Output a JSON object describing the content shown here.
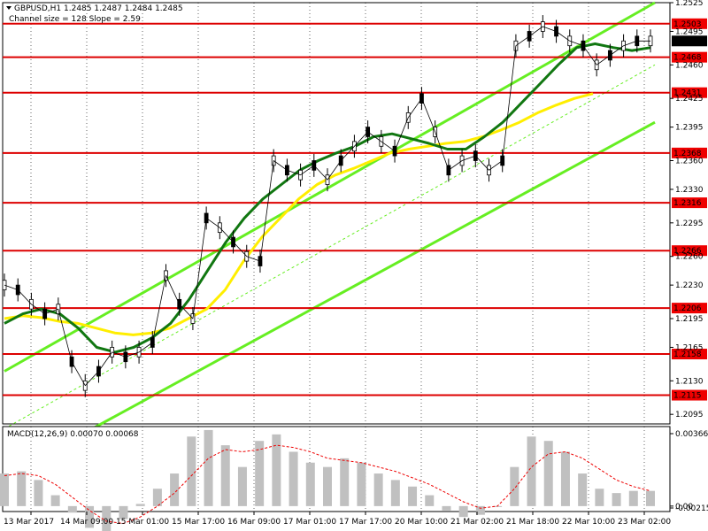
{
  "chart_data": {
    "type": "line",
    "symbol": "GBPUSD",
    "timeframe": "H1",
    "ohlc": [
      1.2485,
      1.2487,
      1.2484,
      1.2485
    ],
    "indicator_label": "Channel size = 128 Slope = 2.59",
    "ylim": [
      1.2085,
      1.2525
    ],
    "y_ticks": [
      "1.2525",
      "1.2495",
      "1.2460",
      "1.2425",
      "1.2395",
      "1.2360",
      "1.2330",
      "1.2295",
      "1.2260",
      "1.2230",
      "1.2195",
      "1.2165",
      "1.2130",
      "1.2095"
    ],
    "levels": [
      1.2503,
      1.2468,
      1.2431,
      1.2368,
      1.2316,
      1.2266,
      1.2206,
      1.2158,
      1.2115
    ],
    "level_labels": [
      "1.2503",
      "1.2468",
      "1.2431",
      "1.2368",
      "1.2316",
      "1.2266",
      "1.2206",
      "1.2158",
      "1.2115"
    ],
    "current_price": "1.2485",
    "x_labels": [
      "13 Mar 2017",
      "14 Mar 09:00",
      "15 Mar 01:00",
      "15 Mar 17:00",
      "16 Mar 09:00",
      "17 Mar 01:00",
      "17 Mar 17:00",
      "20 Mar 10:00",
      "21 Mar 02:00",
      "21 Mar 18:00",
      "22 Mar 10:00",
      "23 Mar 02:00"
    ],
    "price_series": [
      1.223,
      1.2225,
      1.221,
      1.22,
      1.2205,
      1.215,
      1.2125,
      1.214,
      1.216,
      1.2155,
      1.216,
      1.217,
      1.224,
      1.221,
      1.2195,
      1.23,
      1.229,
      1.2275,
      1.226,
      1.2255,
      1.236,
      1.235,
      1.2345,
      1.2355,
      1.234,
      1.236,
      1.2375,
      1.239,
      1.238,
      1.237,
      1.2405,
      1.2425,
      1.239,
      1.235,
      1.236,
      1.2365,
      1.235,
      1.236,
      1.248,
      1.249,
      1.25,
      1.2495,
      1.2485,
      1.248,
      1.246,
      1.247,
      1.248,
      1.2485,
      1.2485
    ],
    "ma_green": [
      1.219,
      1.22,
      1.2205,
      1.22,
      1.2185,
      1.2165,
      1.216,
      1.2165,
      1.2175,
      1.219,
      1.2215,
      1.2245,
      1.2275,
      1.23,
      1.232,
      1.2335,
      1.235,
      1.236,
      1.2368,
      1.2375,
      1.2385,
      1.2388,
      1.2383,
      1.2378,
      1.2372,
      1.2372,
      1.2385,
      1.24,
      1.242,
      1.244,
      1.246,
      1.2478,
      1.2482,
      1.2478,
      1.2475,
      1.2478
    ],
    "ma_yellow": [
      1.2195,
      1.2198,
      1.2196,
      1.2192,
      1.219,
      1.2185,
      1.218,
      1.2178,
      1.218,
      1.2185,
      1.2195,
      1.2205,
      1.2225,
      1.2255,
      1.228,
      1.23,
      1.232,
      1.2335,
      1.2345,
      1.2352,
      1.236,
      1.2368,
      1.2372,
      1.2375,
      1.2378,
      1.238,
      1.2385,
      1.2392,
      1.24,
      1.241,
      1.2418,
      1.2425,
      1.243
    ],
    "channel_upper": [
      [
        0,
        1.214
      ],
      [
        35,
        1.2525
      ]
    ],
    "channel_middle": [
      [
        0,
        1.208
      ],
      [
        35,
        1.246
      ]
    ],
    "channel_lower": [
      [
        0,
        1.203
      ],
      [
        35,
        1.24
      ]
    ],
    "macd": {
      "label": "MACD(12,26,9) 0.00070 0.00068",
      "ylim": [
        -0.00025,
        0.00366
      ],
      "y_ticks": [
        "0.00366",
        "0.00",
        "-0.00215"
      ],
      "histogram": [
        0.0015,
        0.0016,
        0.0012,
        0.0005,
        -0.0003,
        -0.001,
        -0.0012,
        -0.0006,
        0.0001,
        0.0008,
        0.0015,
        0.0032,
        0.0035,
        0.0028,
        0.0018,
        0.003,
        0.0033,
        0.0025,
        0.002,
        0.0018,
        0.0022,
        0.002,
        0.0015,
        0.0012,
        0.0009,
        0.0005,
        -0.0002,
        -0.0005,
        -0.0004,
        0.0,
        0.0018,
        0.0032,
        0.003,
        0.0025,
        0.0015,
        0.0008,
        0.0006,
        0.0007,
        0.0007
      ],
      "signal": [
        0.0014,
        0.0015,
        0.0014,
        0.001,
        0.0004,
        -0.0002,
        -0.0007,
        -0.0008,
        -0.0005,
        0.0,
        0.0006,
        0.0014,
        0.0022,
        0.0026,
        0.0025,
        0.0026,
        0.0028,
        0.0027,
        0.0025,
        0.0022,
        0.0021,
        0.002,
        0.0018,
        0.0016,
        0.0013,
        0.001,
        0.0006,
        0.0002,
        -0.0001,
        0.0,
        0.0008,
        0.0018,
        0.0024,
        0.0025,
        0.0022,
        0.0017,
        0.0012,
        0.0009,
        0.0007
      ]
    }
  }
}
